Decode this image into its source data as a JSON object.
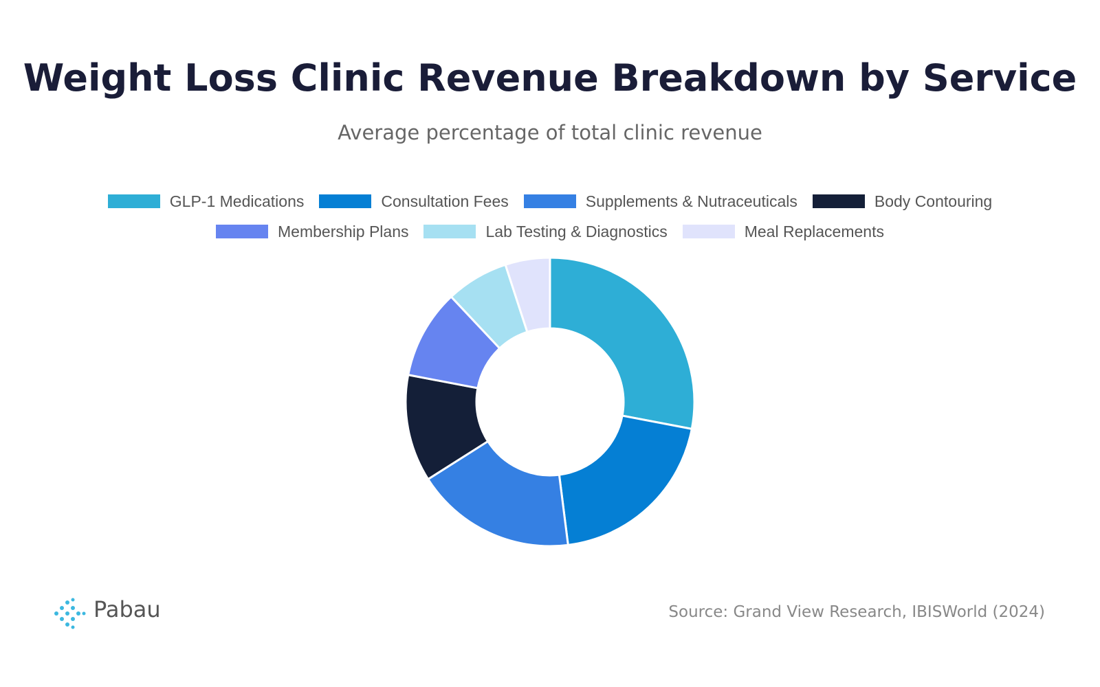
{
  "chart_data": {
    "type": "donut",
    "title": "Weight Loss Clinic Revenue Breakdown by Service",
    "subtitle": "Average percentage of total clinic revenue",
    "categories": [
      "GLP-1 Medications",
      "Consultation Fees",
      "Supplements & Nutraceuticals",
      "Body Contouring",
      "Membership Plans",
      "Lab Testing & Diagnostics",
      "Meal Replacements"
    ],
    "values": [
      28,
      20,
      18,
      12,
      10,
      7,
      5
    ],
    "colors": [
      "#2eaed6",
      "#057fd4",
      "#3580e3",
      "#141f38",
      "#6684f0",
      "#a6e0f2",
      "#e0e3fc"
    ],
    "legend": "top",
    "source": "Source: Grand View Research, IBISWorld (2024)",
    "brand": "Pabau"
  }
}
